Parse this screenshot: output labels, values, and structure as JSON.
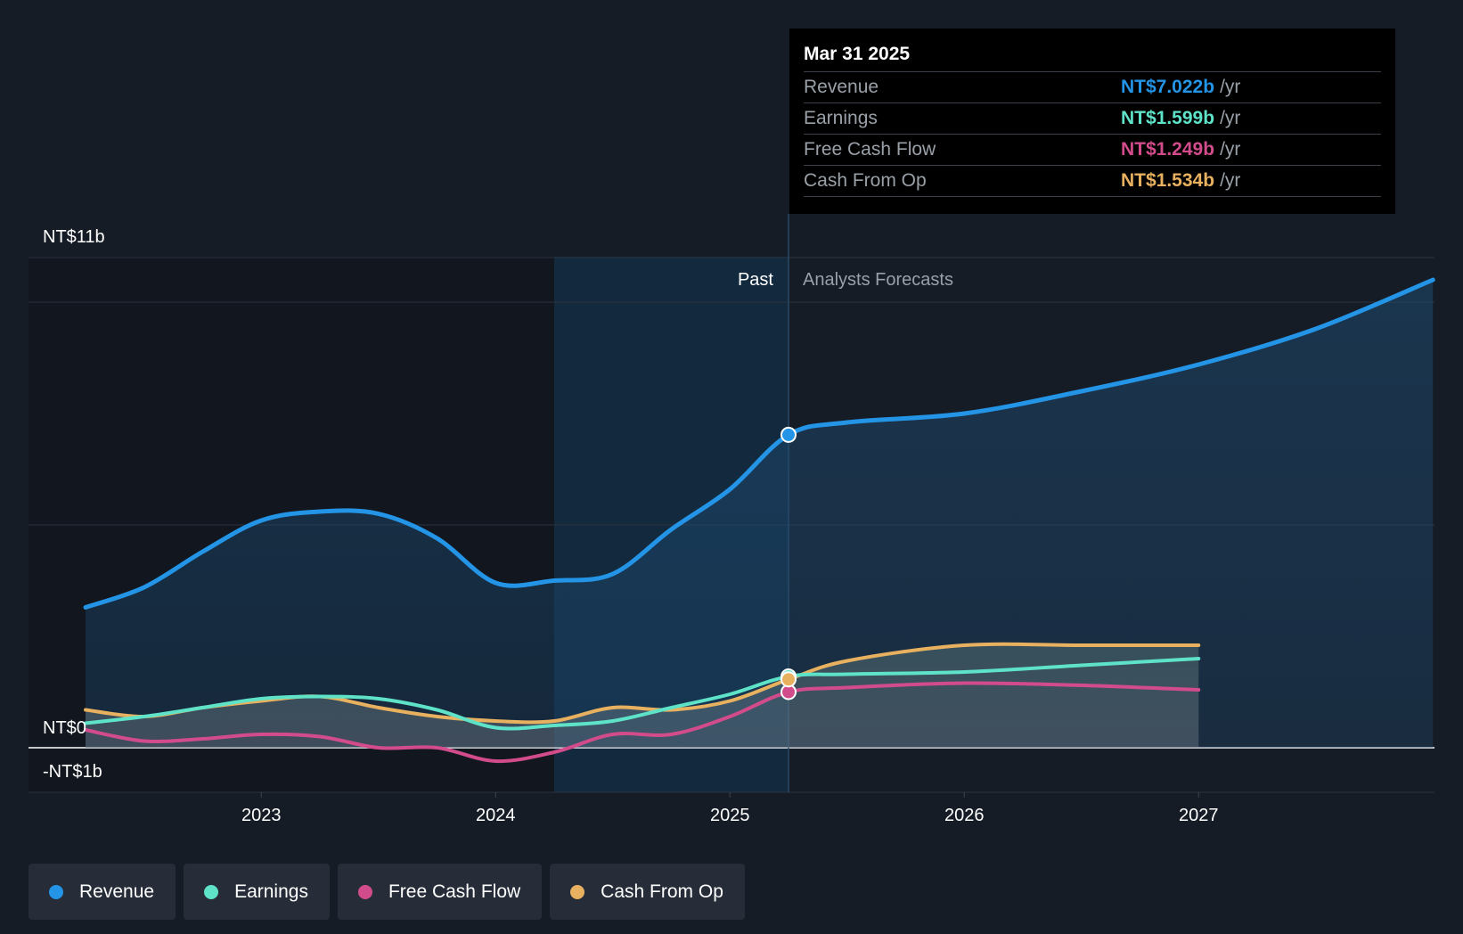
{
  "chart_data": {
    "type": "line",
    "y_unit": "NT$ billions",
    "ylim": [
      -1,
      11
    ],
    "y_axis_labels": [
      "NT$11b",
      "NT$0",
      "-NT$1b"
    ],
    "x_ticks": [
      "2023",
      "2024",
      "2025",
      "2026",
      "2027"
    ],
    "sections": {
      "past": "Past",
      "forecast": "Analysts Forecasts"
    },
    "series": [
      {
        "name": "Revenue",
        "color": "#2394e6",
        "points": [
          [
            2022.25,
            3.15
          ],
          [
            2022.5,
            3.6
          ],
          [
            2022.75,
            4.4
          ],
          [
            2023.0,
            5.1
          ],
          [
            2023.25,
            5.3
          ],
          [
            2023.5,
            5.25
          ],
          [
            2023.75,
            4.7
          ],
          [
            2024.0,
            3.7
          ],
          [
            2024.25,
            3.75
          ],
          [
            2024.5,
            3.9
          ],
          [
            2024.75,
            4.9
          ],
          [
            2025.0,
            5.8
          ],
          [
            2025.25,
            7.022
          ],
          [
            2025.5,
            7.3
          ],
          [
            2026.0,
            7.5
          ],
          [
            2026.5,
            8.0
          ],
          [
            2027.0,
            8.6
          ],
          [
            2027.5,
            9.4
          ],
          [
            2028.0,
            10.5
          ]
        ]
      },
      {
        "name": "Earnings",
        "color": "#5ee3c8",
        "points": [
          [
            2022.25,
            0.55
          ],
          [
            2022.5,
            0.7
          ],
          [
            2022.75,
            0.9
          ],
          [
            2023.0,
            1.1
          ],
          [
            2023.25,
            1.15
          ],
          [
            2023.5,
            1.1
          ],
          [
            2023.75,
            0.85
          ],
          [
            2024.0,
            0.45
          ],
          [
            2024.25,
            0.5
          ],
          [
            2024.5,
            0.6
          ],
          [
            2024.75,
            0.9
          ],
          [
            2025.0,
            1.2
          ],
          [
            2025.25,
            1.599
          ],
          [
            2025.5,
            1.65
          ],
          [
            2026.0,
            1.7
          ],
          [
            2026.5,
            1.85
          ],
          [
            2027.0,
            2.0
          ]
        ]
      },
      {
        "name": "Free Cash Flow",
        "color": "#d24c8c",
        "points": [
          [
            2022.25,
            0.4
          ],
          [
            2022.5,
            0.15
          ],
          [
            2022.75,
            0.2
          ],
          [
            2023.0,
            0.3
          ],
          [
            2023.25,
            0.25
          ],
          [
            2023.5,
            0.0
          ],
          [
            2023.75,
            0.0
          ],
          [
            2024.0,
            -0.3
          ],
          [
            2024.25,
            -0.1
          ],
          [
            2024.5,
            0.3
          ],
          [
            2024.75,
            0.3
          ],
          [
            2025.0,
            0.7
          ],
          [
            2025.25,
            1.249
          ],
          [
            2025.5,
            1.35
          ],
          [
            2026.0,
            1.45
          ],
          [
            2026.5,
            1.4
          ],
          [
            2027.0,
            1.3
          ]
        ]
      },
      {
        "name": "Cash From Op",
        "color": "#e8b160",
        "points": [
          [
            2022.25,
            0.85
          ],
          [
            2022.5,
            0.7
          ],
          [
            2022.75,
            0.9
          ],
          [
            2023.0,
            1.05
          ],
          [
            2023.25,
            1.15
          ],
          [
            2023.5,
            0.9
          ],
          [
            2023.75,
            0.7
          ],
          [
            2024.0,
            0.6
          ],
          [
            2024.25,
            0.6
          ],
          [
            2024.5,
            0.9
          ],
          [
            2024.75,
            0.85
          ],
          [
            2025.0,
            1.05
          ],
          [
            2025.25,
            1.534
          ],
          [
            2025.5,
            1.95
          ],
          [
            2026.0,
            2.3
          ],
          [
            2026.5,
            2.3
          ],
          [
            2027.0,
            2.3
          ]
        ]
      }
    ],
    "highlight_x": 2025.25,
    "legend": [
      "Revenue",
      "Earnings",
      "Free Cash Flow",
      "Cash From Op"
    ]
  },
  "tooltip": {
    "date": "Mar 31 2025",
    "rows": [
      {
        "label": "Revenue",
        "value": "NT$7.022b",
        "unit": "/yr",
        "color": "#2394e6"
      },
      {
        "label": "Earnings",
        "value": "NT$1.599b",
        "unit": "/yr",
        "color": "#5ee3c8"
      },
      {
        "label": "Free Cash Flow",
        "value": "NT$1.249b",
        "unit": "/yr",
        "color": "#d24c8c"
      },
      {
        "label": "Cash From Op",
        "value": "NT$1.534b",
        "unit": "/yr",
        "color": "#e8b160"
      }
    ]
  },
  "legend_items": [
    {
      "label": "Revenue",
      "color": "#2394e6"
    },
    {
      "label": "Earnings",
      "color": "#5ee3c8"
    },
    {
      "label": "Free Cash Flow",
      "color": "#d24c8c"
    },
    {
      "label": "Cash From Op",
      "color": "#e8b160"
    }
  ]
}
